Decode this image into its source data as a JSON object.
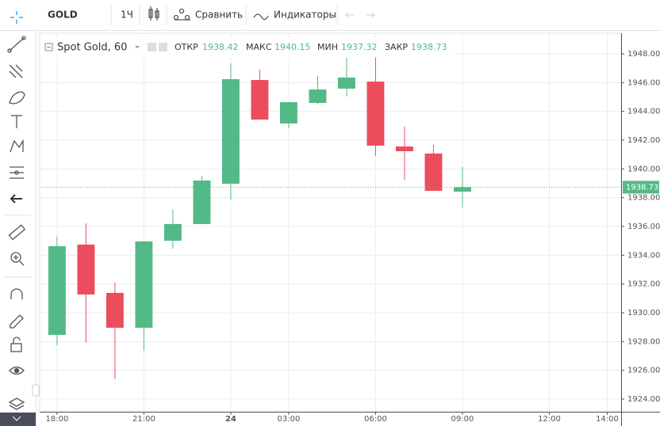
{
  "toolbar": {
    "symbol": "GOLD",
    "interval": "1Ч",
    "compare": "Сравнить",
    "indicators": "Индикаторы"
  },
  "legend": {
    "open": "ОТКР",
    "high": "МАКС",
    "low": "МИН",
    "close": "ЗАКР"
  },
  "chart_data": {
    "type": "candlestick",
    "title": "Spot Gold, 60",
    "x": [
      0,
      1,
      2,
      3,
      4,
      5,
      6,
      7,
      8,
      9,
      10,
      11,
      12,
      13,
      14
    ],
    "open": [
      1928.46,
      1934.74,
      1931.38,
      1928.96,
      1935.01,
      1936.17,
      1938.97,
      1946.18,
      1943.16,
      1944.59,
      1945.58,
      1946.07,
      1941.56,
      1941.07,
      1938.42
    ],
    "high": [
      1935.29,
      1936.22,
      1932.09,
      1935.0,
      1937.21,
      1939.52,
      1947.34,
      1946.9,
      1944.64,
      1946.46,
      1948.0,
      1947.9,
      1942.94,
      1941.67,
      1940.15
    ],
    "low": [
      1927.75,
      1927.91,
      1925.38,
      1927.36,
      1934.46,
      1936.17,
      1937.87,
      1943.4,
      1942.83,
      1944.5,
      1945.03,
      1940.9,
      1939.25,
      1938.48,
      1937.32
    ],
    "close": [
      1934.63,
      1931.27,
      1928.96,
      1934.96,
      1936.17,
      1939.19,
      1946.24,
      1943.43,
      1944.64,
      1945.52,
      1946.35,
      1941.62,
      1941.23,
      1938.48,
      1938.73
    ],
    "up_color": "#53b987",
    "down_color": "#eb4d5c",
    "xlim": [
      -0.6,
      19.48
    ],
    "xticks": [
      {
        "value": 0,
        "label": "18:00"
      },
      {
        "value": 3,
        "label": "21:00"
      },
      {
        "value": 6,
        "label": "24"
      },
      {
        "value": 8,
        "label": "03:00"
      },
      {
        "value": 11,
        "label": "06:00"
      },
      {
        "value": 14,
        "label": "09:00"
      },
      {
        "value": 17,
        "label": "12:00"
      },
      {
        "value": 19,
        "label": "14:00"
      }
    ],
    "ylim": [
      1923.12,
      1949.43
    ],
    "yticks": [
      {
        "value": 1924,
        "label": "1924.00"
      },
      {
        "value": 1926,
        "label": "1926.00"
      },
      {
        "value": 1928,
        "label": "1928.00"
      },
      {
        "value": 1930,
        "label": "1930.00"
      },
      {
        "value": 1932,
        "label": "1932.00"
      },
      {
        "value": 1934,
        "label": "1934.00"
      },
      {
        "value": 1936,
        "label": "1936.00"
      },
      {
        "value": 1938,
        "label": "1938.00"
      },
      {
        "value": 1940,
        "label": "1940.00"
      },
      {
        "value": 1942,
        "label": "1942.00"
      },
      {
        "value": 1944,
        "label": "1944.00"
      },
      {
        "value": 1946,
        "label": "1946.00"
      },
      {
        "value": 1948,
        "label": "1948.00"
      }
    ],
    "grid": true
  }
}
